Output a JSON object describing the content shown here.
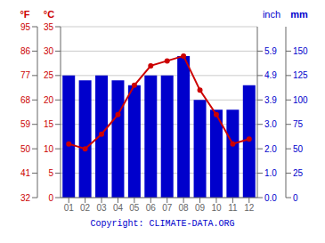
{
  "chart_data": {
    "type": "bar",
    "categories": [
      "01",
      "02",
      "03",
      "04",
      "05",
      "06",
      "07",
      "08",
      "09",
      "10",
      "11",
      "12"
    ],
    "series": [
      {
        "type": "bar",
        "color": "#0000cc",
        "axis": "y2",
        "values": [
          125,
          120,
          125,
          120,
          115,
          125,
          125,
          145,
          100,
          90,
          90,
          115
        ]
      },
      {
        "type": "line",
        "color": "#cc0000",
        "marker": "circle",
        "values": [
          11,
          10,
          13,
          17,
          23,
          27,
          28,
          29,
          22,
          17,
          11,
          12
        ]
      }
    ],
    "ylim": [
      0,
      35
    ],
    "yticks": [
      0,
      5,
      10,
      15,
      20,
      25,
      30,
      35
    ],
    "ylabel": "°C",
    "y2lim": [
      0,
      175
    ],
    "y2ticks": [
      0,
      25,
      50,
      75,
      100,
      125,
      150
    ],
    "y2label": "mm",
    "y3label": "°F",
    "y3ticks": [
      {
        "value": 0,
        "label": "32"
      },
      {
        "value": 5,
        "label": "41"
      },
      {
        "value": 10,
        "label": "50"
      },
      {
        "value": 15,
        "label": "59"
      },
      {
        "value": 20,
        "label": "68"
      },
      {
        "value": 25,
        "label": "77"
      },
      {
        "value": 30,
        "label": "86"
      },
      {
        "value": 35,
        "label": "95"
      }
    ],
    "y4label": "inch",
    "y4ticks": [
      {
        "value": 0,
        "label": "0.0"
      },
      {
        "value": 25,
        "label": "1.0"
      },
      {
        "value": 50,
        "label": "2.0"
      },
      {
        "value": 75,
        "label": "3.0"
      },
      {
        "value": 100,
        "label": "3.9"
      },
      {
        "value": 125,
        "label": "4.9"
      },
      {
        "value": 150,
        "label": "5.9"
      }
    ],
    "grid": true,
    "annotation": "Copyright: CLIMATE-DATA.ORG"
  }
}
